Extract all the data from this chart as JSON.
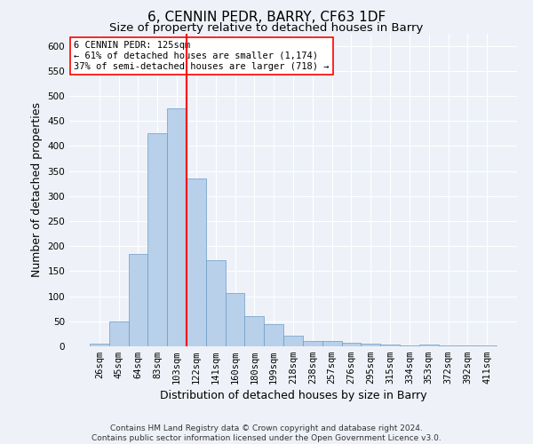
{
  "title": "6, CENNIN PEDR, BARRY, CF63 1DF",
  "subtitle": "Size of property relative to detached houses in Barry",
  "xlabel": "Distribution of detached houses by size in Barry",
  "ylabel": "Number of detached properties",
  "categories": [
    "26sqm",
    "45sqm",
    "64sqm",
    "83sqm",
    "103sqm",
    "122sqm",
    "141sqm",
    "160sqm",
    "180sqm",
    "199sqm",
    "218sqm",
    "238sqm",
    "257sqm",
    "276sqm",
    "295sqm",
    "315sqm",
    "334sqm",
    "353sqm",
    "372sqm",
    "392sqm",
    "411sqm"
  ],
  "values": [
    5,
    50,
    185,
    425,
    475,
    335,
    172,
    107,
    60,
    44,
    22,
    10,
    10,
    7,
    5,
    3,
    2,
    4,
    2,
    1,
    2
  ],
  "bar_color": "#b8d0ea",
  "bar_edge_color": "#6a9cc4",
  "vline_color": "red",
  "annotation_title": "6 CENNIN PEDR: 125sqm",
  "annotation_line1": "← 61% of detached houses are smaller (1,174)",
  "annotation_line2": "37% of semi-detached houses are larger (718) →",
  "annotation_box_color": "white",
  "annotation_box_edge": "red",
  "footer": "Contains HM Land Registry data © Crown copyright and database right 2024.\nContains public sector information licensed under the Open Government Licence v3.0.",
  "ylim": [
    0,
    625
  ],
  "yticks": [
    0,
    50,
    100,
    150,
    200,
    250,
    300,
    350,
    400,
    450,
    500,
    550,
    600
  ],
  "background_color": "#eef2f8",
  "plot_bg_color": "#eef2f8",
  "grid_color": "white",
  "title_fontsize": 11,
  "subtitle_fontsize": 9.5,
  "tick_fontsize": 7.5,
  "ylabel_fontsize": 9,
  "xlabel_fontsize": 9,
  "footer_fontsize": 6.5
}
